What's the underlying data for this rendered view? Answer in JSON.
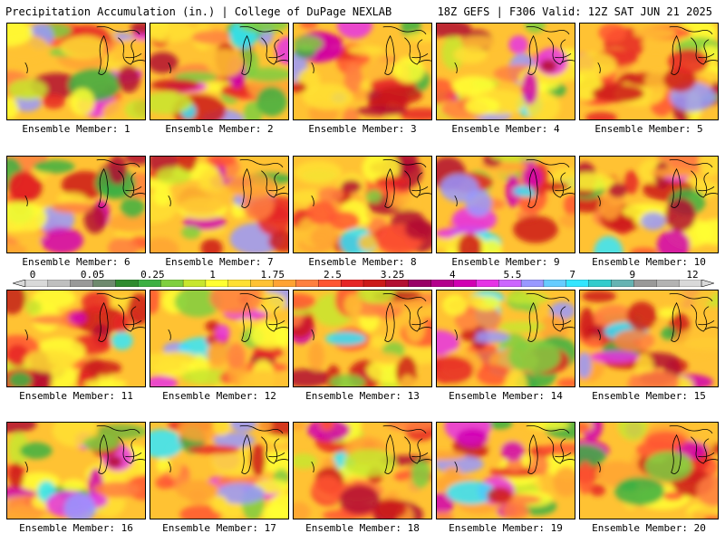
{
  "header": {
    "title": "Precipitation Accumulation (in.) | College of DuPage NEXLAB",
    "run_info": "18Z GEFS | F306 Valid: 12Z SAT JUN 21 2025"
  },
  "panels": [
    {
      "label": "Ensemble Member: 1"
    },
    {
      "label": "Ensemble Member: 2"
    },
    {
      "label": "Ensemble Member: 3"
    },
    {
      "label": "Ensemble Member: 4"
    },
    {
      "label": "Ensemble Member: 5"
    },
    {
      "label": "Ensemble Member: 6"
    },
    {
      "label": "Ensemble Member: 7"
    },
    {
      "label": "Ensemble Member: 8"
    },
    {
      "label": "Ensemble Member: 9"
    },
    {
      "label": "Ensemble Member: 10"
    },
    {
      "label": "Ensemble Member: 11"
    },
    {
      "label": "Ensemble Member: 12"
    },
    {
      "label": "Ensemble Member: 13"
    },
    {
      "label": "Ensemble Member: 14"
    },
    {
      "label": "Ensemble Member: 15"
    },
    {
      "label": "Ensemble Member: 16"
    },
    {
      "label": "Ensemble Member: 17"
    },
    {
      "label": "Ensemble Member: 18"
    },
    {
      "label": "Ensemble Member: 19"
    },
    {
      "label": "Ensemble Member: 20"
    }
  ],
  "colorbar": {
    "tick_labels": [
      "0",
      "0.05",
      "0.25",
      "1",
      "1.75",
      "2.5",
      "3.25",
      "4",
      "5.5",
      "7",
      "9",
      "12"
    ],
    "colors": [
      "#d9d9d9",
      "#bfbfbf",
      "#999999",
      "#6e8a6e",
      "#2e8b2e",
      "#3cb043",
      "#7fcf3f",
      "#c8e62e",
      "#ffff33",
      "#ffe033",
      "#ffc233",
      "#ffa333",
      "#ff8040",
      "#ff5533",
      "#e62626",
      "#cc1a1a",
      "#b30f33",
      "#990066",
      "#b3008c",
      "#d100b3",
      "#e633e6",
      "#cc66ff",
      "#9999ff",
      "#66ccff",
      "#33e6ff",
      "#33cccc",
      "#66b3b3",
      "#999999",
      "#b3b3b3",
      "#d9d9d9"
    ]
  }
}
